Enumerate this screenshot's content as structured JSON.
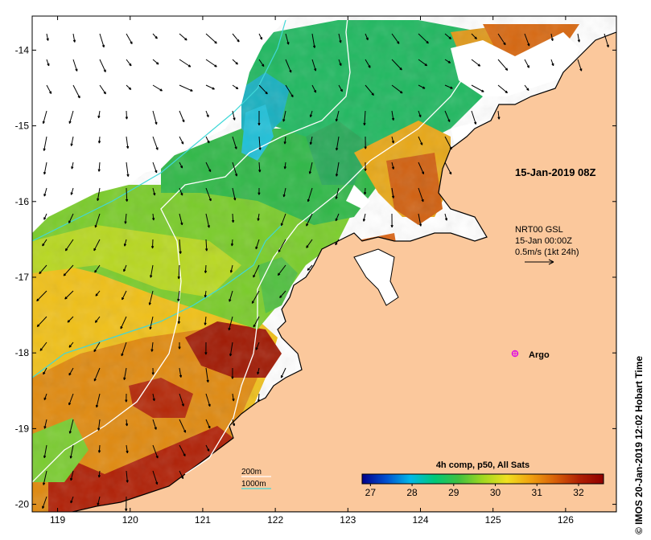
{
  "map": {
    "timestamp": "15-Jan-2019 08Z",
    "current_info": {
      "line1": "NRT00 GSL",
      "line2": "15-Jan 00:00Z",
      "line3": "0.5m/s (1kt 24h)"
    },
    "argo_label": "Argo",
    "isobaths": {
      "shallow": "200m",
      "deep": "1000m"
    },
    "credit": "© IMOS 20-Jan-2019 12:02 Hobart Time",
    "colorbar": {
      "title": "4h comp, p50, All Sats",
      "ticks": [
        "27",
        "28",
        "29",
        "30",
        "31",
        "32"
      ],
      "min": 26.8,
      "max": 32.6,
      "colors": [
        "#00008b",
        "#0050d0",
        "#00b8e8",
        "#00c878",
        "#40c040",
        "#a0d820",
        "#f0e020",
        "#f0a010",
        "#d86008",
        "#b02004",
        "#900000"
      ]
    },
    "lon_ticks": [
      "119",
      "120",
      "121",
      "122",
      "123",
      "124",
      "125",
      "126"
    ],
    "lat_ticks": [
      "-14",
      "-15",
      "-16",
      "-17",
      "-18",
      "-19",
      "-20"
    ],
    "lon_values": [
      119,
      120,
      121,
      122,
      123,
      124,
      125,
      126
    ],
    "lat_values": [
      -14,
      -15,
      -16,
      -17,
      -18,
      -19,
      -20
    ],
    "lon_range": [
      118.65,
      126.7
    ],
    "lat_range": [
      -13.55,
      -20.1
    ],
    "colors": {
      "land": "#fbc89c",
      "frame": "#000000",
      "isobath_200": "#40d8d8",
      "isobath_1000": "#ffffff",
      "argo": "#e010e0"
    }
  }
}
